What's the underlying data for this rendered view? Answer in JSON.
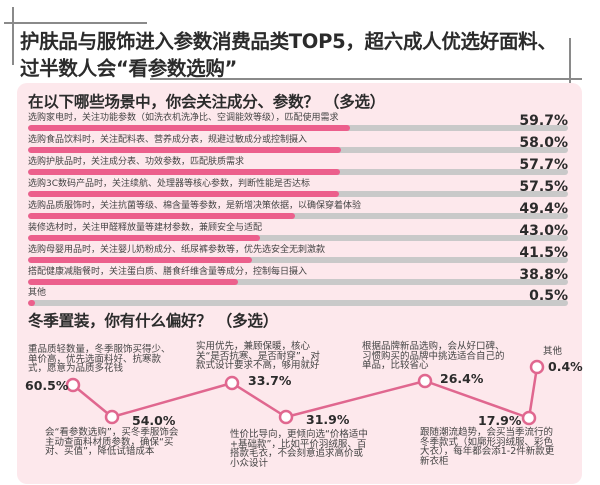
{
  "header": {
    "title_line1": "护肤品与服饰进入参数消费品类TOP5，超六成人优选好面料、",
    "title_line2": "过半数人会“看参数选购”"
  },
  "section1": {
    "title": "在以下哪些场景中，你会关注成分、参数？ （多选）",
    "rows": [
      {
        "label": "选购家电时，关注功能参数（如洗衣机洗净比、空调能效等级），匹配使用需求",
        "value": 59.7,
        "pct": "59.7%"
      },
      {
        "label": "选购食品饮料时，关注配料表、营养成分表，规避过敏成分或控制摄入",
        "value": 58.0,
        "pct": "58.0%"
      },
      {
        "label": "选购护肤品时，关注成分表、功效参数，匹配肤质需求",
        "value": 57.7,
        "pct": "57.7%"
      },
      {
        "label": "选购3C数码产品时，关注续航、处理器等核心参数，判断性能是否达标",
        "value": 57.5,
        "pct": "57.5%"
      },
      {
        "label": "选购品质服饰时，关注抗菌等级、棉含量等参数，是新增决策依据，以确保穿着体验",
        "value": 49.4,
        "pct": "49.4%"
      },
      {
        "label": "装修选材时，关注甲醛释放量等建材参数，兼顾安全与适配",
        "value": 43.0,
        "pct": "43.0%"
      },
      {
        "label": "选购母婴用品时，关注婴儿奶粉成分、纸尿裤参数等，优先选安全无刺激款",
        "value": 41.5,
        "pct": "41.5%"
      },
      {
        "label": "搭配健康减脂餐时，关注蛋白质、膳食纤维含量等成分，控制每日摄入",
        "value": 38.8,
        "pct": "38.8%"
      },
      {
        "label": "其他",
        "value": 0.5,
        "pct": "0.5%"
      }
    ]
  },
  "section2": {
    "title": "冬季置装，你有什么偏好？ （多选）",
    "points": [
      {
        "pct": "60.5%",
        "value": 60.5,
        "desc": "重品质轻数量，冬季服饰买得少、单价高，优先选面料好、抗寒款式，愿意为品质多花钱"
      },
      {
        "pct": "54.0%",
        "value": 54.0,
        "desc": "会“看参数选购”，买冬季服饰会主动查面料材质参数，确保“买对、买值”，降低试错成本"
      },
      {
        "pct": "33.7%",
        "value": 33.7,
        "desc": "实用优先，兼顾保暖，核心关“是否抗寒、是否耐穿”，对款式设计要求不高，够用就好"
      },
      {
        "pct": "31.9%",
        "value": 31.9,
        "desc": "性价比导向，更倾向选“价格适中+基础款”，比如平价羽绒服、百搭款毛衣，不会刻意追求高价或小众设计"
      },
      {
        "pct": "26.4%",
        "value": 26.4,
        "desc": "根据品牌新品选购，会从好口碑、习惯购买的品牌中挑选适合自己的单品，比较省心"
      },
      {
        "pct": "17.9%",
        "value": 17.9,
        "desc": "跟随潮流趋势，会买当季流行的冬季款式（如廓形羽绒服、彩色大衣），每年都会添1-2件新款更新衣柜"
      },
      {
        "pct": "0.4%",
        "value": 0.4,
        "desc": "其他"
      }
    ]
  },
  "colors": {
    "accent": "#ec5f8c",
    "line": "#e0678f",
    "track": "#c9c9c9",
    "card_bg": "#fde8ec"
  },
  "chart_data": [
    {
      "type": "bar",
      "orientation": "horizontal",
      "title": "在以下哪些场景中，你会关注成分、参数？ （多选）",
      "categories": [
        "选购家电时，关注功能参数（如洗衣机洗净比、空调能效等级），匹配使用需求",
        "选购食品饮料时，关注配料表、营养成分表，规避过敏成分或控制摄入",
        "选购护肤品时，关注成分表、功效参数，匹配肤质需求",
        "选购3C数码产品时，关注续航、处理器等核心参数，判断性能是否达标",
        "选购品质服饰时，关注抗菌等级、棉含量等参数，是新增决策依据，以确保穿着体验",
        "装修选材时，关注甲醛释放量等建材参数，兼顾安全与适配",
        "选购母婴用品时，关注婴儿奶粉成分、纸尿裤参数等，优先选安全无刺激款",
        "搭配健康减脂餐时，关注蛋白质、膳食纤维含量等成分，控制每日摄入",
        "其他"
      ],
      "values": [
        59.7,
        58.0,
        57.7,
        57.5,
        49.4,
        43.0,
        41.5,
        38.8,
        0.5
      ],
      "unit": "%",
      "xlim": [
        0,
        100
      ],
      "grid": false,
      "legend": "none"
    },
    {
      "type": "line",
      "title": "冬季置装，你有什么偏好？ （多选）",
      "categories": [
        "重品质轻数量，冬季服饰买得少、单价高，优先选面料好、抗寒款式，愿意为品质多花钱",
        "会“看参数选购”，买冬季服饰会主动查面料材质参数，确保“买对、买值”，降低试错成本",
        "实用优先，兼顾保暖，核心关“是否抗寒、是否耐穿”，对款式设计要求不高，够用就好",
        "性价比导向，更倾向选“价格适中+基础款”，比如平价羽绒服、百搭款毛衣，不会刻意追求高价或小众设计",
        "根据品牌新品选购，会从好口碑、习惯购买的品牌中挑选适合自己的单品，比较省心",
        "跟随潮流趋势，会买当季流行的冬季款式（如廓形羽绒服、彩色大衣），每年都会添1-2件新款更新衣柜",
        "其他"
      ],
      "values": [
        60.5,
        54.0,
        33.7,
        31.9,
        26.4,
        17.9,
        0.4
      ],
      "unit": "%",
      "grid": false,
      "legend": "none"
    }
  ]
}
